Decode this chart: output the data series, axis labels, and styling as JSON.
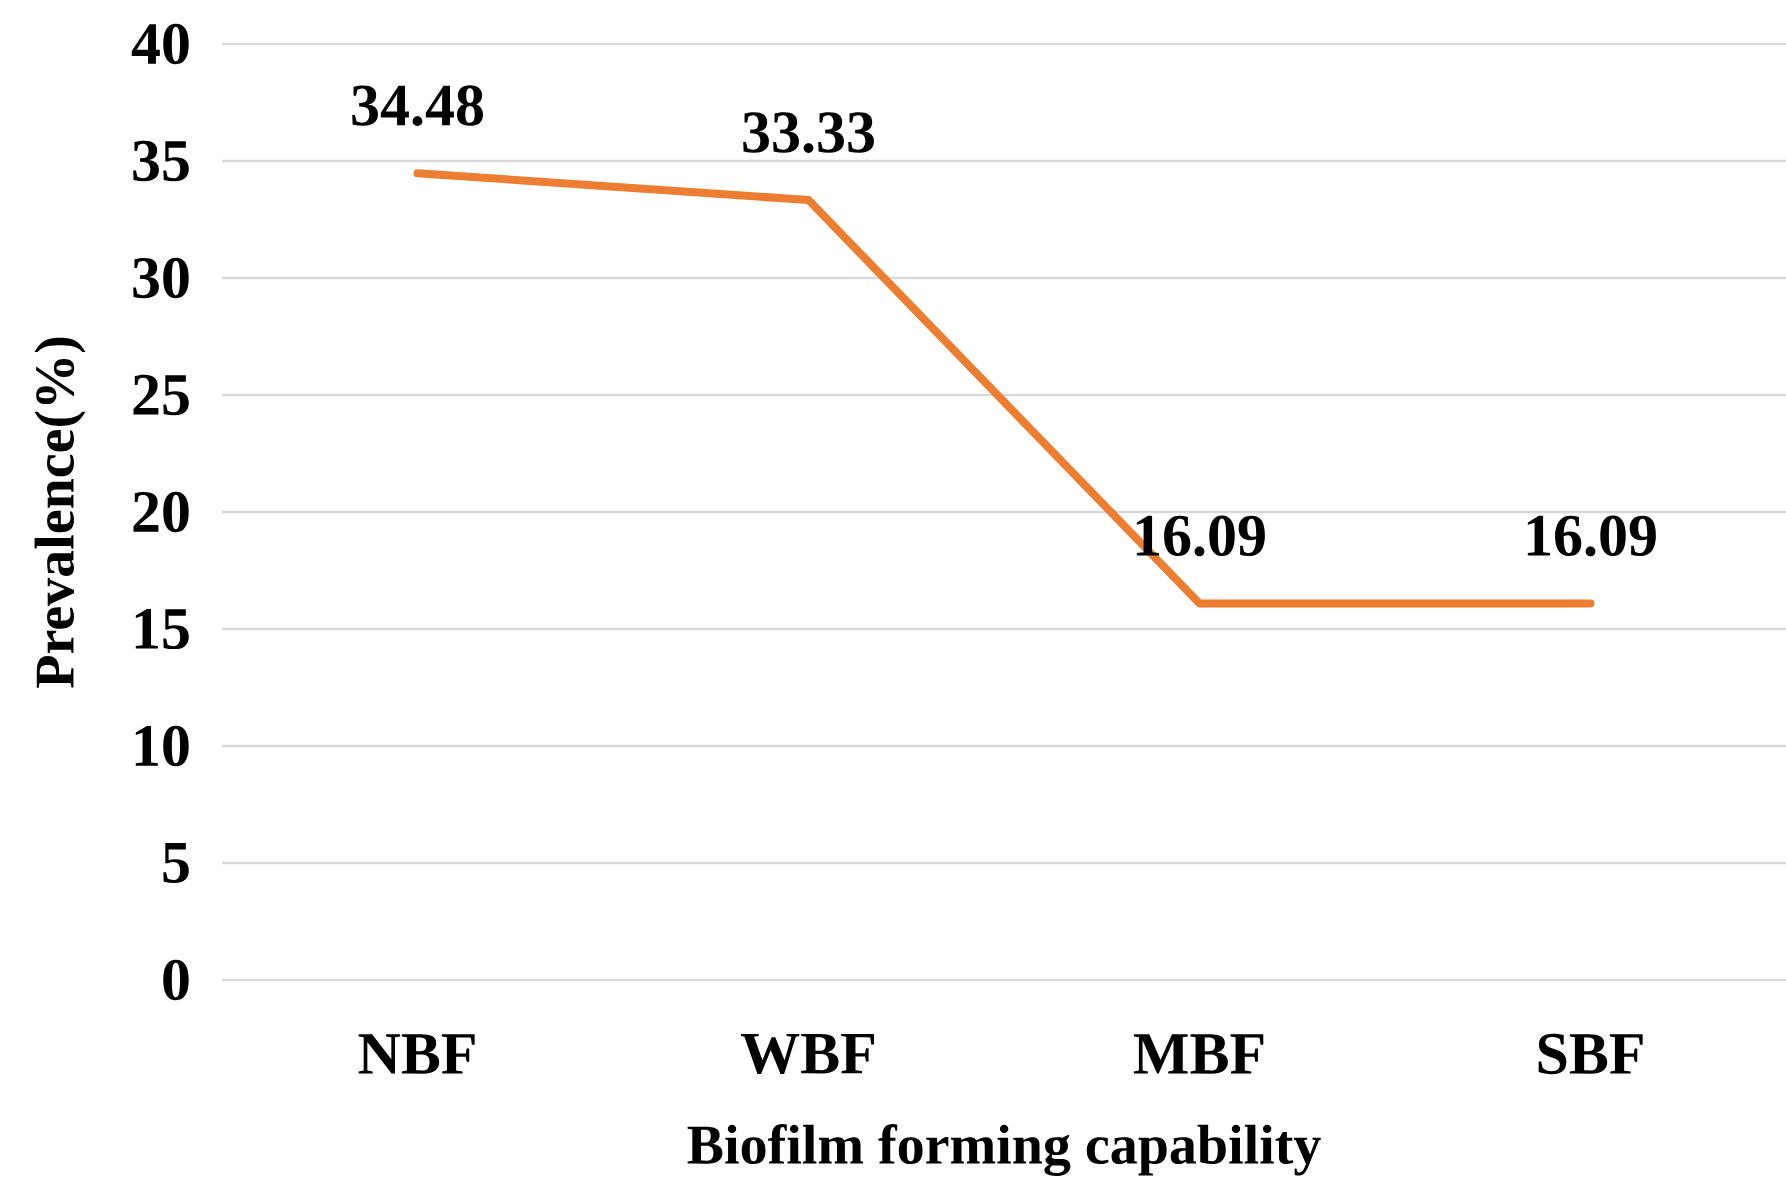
{
  "chart_data": {
    "type": "line",
    "xlabel": "Biofilm forming capability",
    "ylabel": "Prevalence(%)",
    "categories": [
      "NBF",
      "WBF",
      "MBF",
      "SBF"
    ],
    "series": [
      {
        "color": "#ed7d31",
        "values": [
          34.48,
          33.33,
          16.09,
          16.09
        ]
      }
    ],
    "ylim": [
      0,
      40
    ],
    "yticks": [
      0,
      5,
      10,
      15,
      20,
      25,
      30,
      35,
      40
    ],
    "grid": "y",
    "data_labels": true
  }
}
